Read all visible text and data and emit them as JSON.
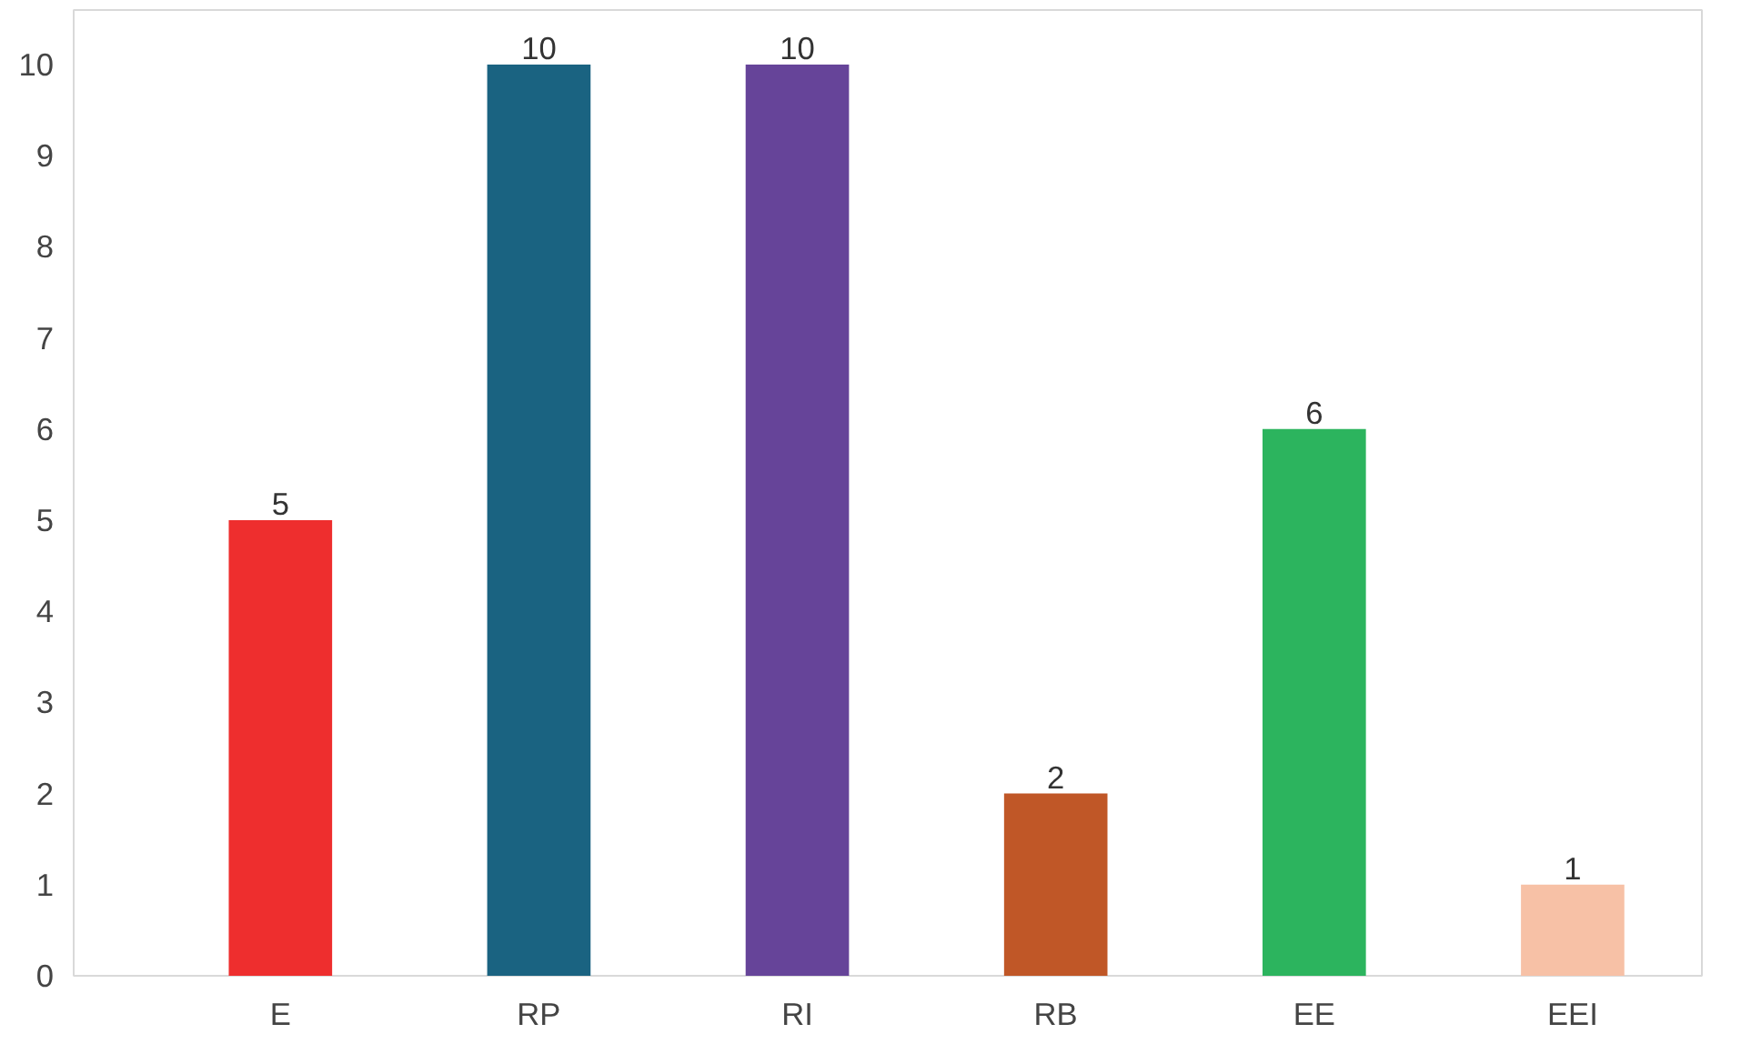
{
  "chart_data": {
    "type": "bar",
    "categories": [
      "E",
      "RP",
      "RI",
      "RB",
      "EE",
      "EEI"
    ],
    "values": [
      5,
      10,
      10,
      2,
      6,
      1
    ],
    "colors": [
      "#ee2e2e",
      "#1a6381",
      "#664499",
      "#c05727",
      "#2cb45e",
      "#f7c1a6"
    ],
    "ylim": [
      0,
      10.6
    ],
    "yticks": [
      0,
      1,
      2,
      3,
      4,
      5,
      6,
      7,
      8,
      9,
      10
    ],
    "data_labels": true,
    "grid": false
  }
}
